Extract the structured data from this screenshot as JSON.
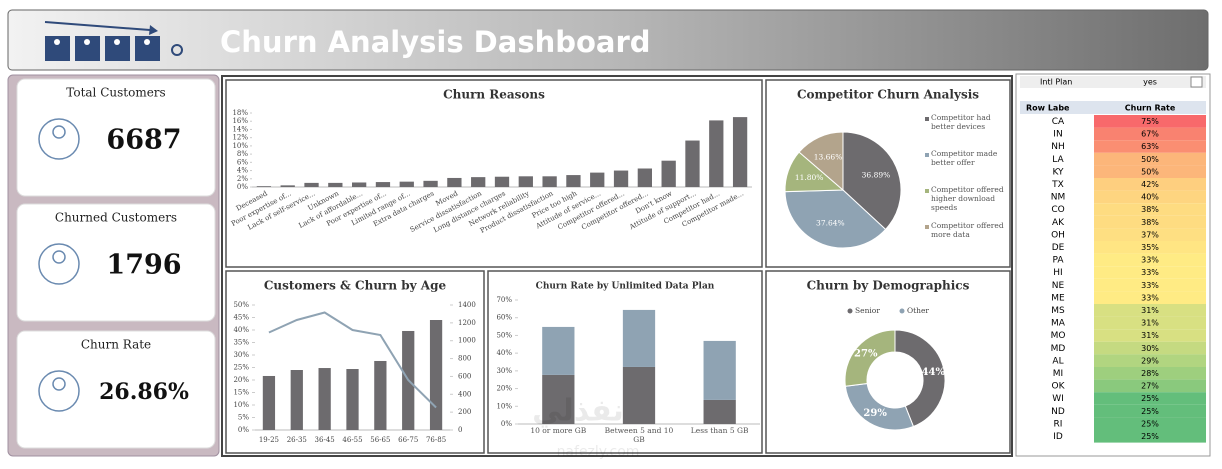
{
  "header": {
    "title": "Churn Analysis Dashboard"
  },
  "kpis": [
    {
      "label": "Total Customers",
      "value": "6687"
    },
    {
      "label": "Churned Customers",
      "value": "1796"
    },
    {
      "label": "Churn Rate",
      "value": "26.86%"
    }
  ],
  "chart_data": [
    {
      "type": "bar",
      "title": "Churn Reasons",
      "color": "#6d6b6e",
      "categories": [
        "Deceased",
        "Poor expertise of...",
        "Lack of self-service...",
        "Unknown",
        "Lack of affordable...",
        "Poor expertise of...",
        "Limited range of...",
        "Extra data charges",
        "Moved",
        "Service dissatisfaction",
        "Long distance charges",
        "Network reliability",
        "Product dissatisfaction",
        "Price too high",
        "Attitude of service...",
        "Competitor offered...",
        "Competitor offered...",
        "Don't know",
        "Attitude of support...",
        "Competitor had...",
        "Competitor made..."
      ],
      "values": [
        0.2,
        0.4,
        1.0,
        1.0,
        1.1,
        1.2,
        1.3,
        1.5,
        2.2,
        2.4,
        2.5,
        2.6,
        2.6,
        2.9,
        3.5,
        4.0,
        4.5,
        6.4,
        11.3,
        16.2,
        17.0
      ],
      "ylim": [
        0,
        18
      ],
      "yticks": [
        {
          "value": 0,
          "label": "0%"
        },
        {
          "value": 2,
          "label": "2%"
        },
        {
          "value": 4,
          "label": "4%"
        },
        {
          "value": 6,
          "label": "6%"
        },
        {
          "value": 8,
          "label": "8%"
        },
        {
          "value": 10,
          "label": "10%"
        },
        {
          "value": 12,
          "label": "12%"
        },
        {
          "value": 14,
          "label": "14%"
        },
        {
          "value": 16,
          "label": "16%"
        },
        {
          "value": 18,
          "label": "18%"
        }
      ]
    },
    {
      "type": "pie",
      "title": "Competitor Churn Analysis",
      "categories": [
        "Competitor had better devices",
        "Competitor made better offer",
        "Competitor offered higher download speeds",
        "Competitor offered more data"
      ],
      "values": [
        36.89,
        37.64,
        11.8,
        13.66
      ],
      "value_labels": [
        "36.89%",
        "37.64%",
        "11.80%",
        "13.66%"
      ],
      "colors": [
        "#6d6b6e",
        "#8fa3b3",
        "#a5b57d",
        "#b3a48c"
      ]
    },
    {
      "type": "combo",
      "title": "Customers & Churn by Age",
      "categories": [
        "19-25",
        "26-35",
        "36-45",
        "46-55",
        "56-65",
        "66-75",
        "76-85"
      ],
      "series": [
        {
          "axis": "y2",
          "kind": "bar",
          "color": "#6d6b6e",
          "values": [
            605,
            672,
            694,
            683,
            773,
            1109,
            1232
          ]
        },
        {
          "kind": "line",
          "color": "#8fa3b3",
          "values": [
            39,
            44,
            47,
            40,
            38,
            20,
            9
          ]
        }
      ],
      "ylim": [
        0,
        50
      ],
      "yticks": [
        {
          "value": 0,
          "label": "0%"
        },
        {
          "value": 5,
          "label": "5%"
        },
        {
          "value": 10,
          "label": "10%"
        },
        {
          "value": 15,
          "label": "15%"
        },
        {
          "value": 20,
          "label": "20%"
        },
        {
          "value": 25,
          "label": "25%"
        },
        {
          "value": 30,
          "label": "30%"
        },
        {
          "value": 35,
          "label": "35%"
        },
        {
          "value": 40,
          "label": "40%"
        },
        {
          "value": 45,
          "label": "45%"
        },
        {
          "value": 50,
          "label": "50%"
        }
      ],
      "y2lim": [
        0,
        1400
      ],
      "y2ticks": [
        0,
        200,
        400,
        600,
        800,
        1000,
        1200,
        1400
      ]
    },
    {
      "type": "stacked_bar",
      "title": "Churn Rate by Unlimited Data Plan",
      "categories": [
        "10 or more GB",
        "Between 5 and 10 GB",
        "Less than 5 GB"
      ],
      "series": [
        {
          "color": "#6d6b6e",
          "values": [
            27.7,
            32.2,
            13.6
          ]
        },
        {
          "color": "#8fa3b3",
          "values": [
            27.1,
            32.2,
            33.3
          ]
        }
      ],
      "ylim": [
        0,
        70
      ],
      "yticks": [
        {
          "value": 0,
          "label": "0%"
        },
        {
          "value": 10,
          "label": "10%"
        },
        {
          "value": 20,
          "label": "20%"
        },
        {
          "value": 30,
          "label": "30%"
        },
        {
          "value": 40,
          "label": "40%"
        },
        {
          "value": 50,
          "label": "50%"
        },
        {
          "value": 60,
          "label": "60%"
        },
        {
          "value": 70,
          "label": "70%"
        }
      ]
    },
    {
      "type": "donut",
      "title": "Churn by Demographics",
      "categories": [
        "Senior",
        "Other",
        null
      ],
      "values": [
        44,
        29,
        27
      ],
      "value_labels": [
        "44%",
        "29%",
        "27%"
      ],
      "colors": [
        "#6d6b6e",
        "#8fa3b3",
        "#a5b57d"
      ]
    }
  ],
  "pivot": {
    "filter": [
      "Intl Plan",
      "yes"
    ],
    "header": [
      "Row Labe",
      "Churn Rate"
    ],
    "rows": [
      [
        "CA",
        "75%"
      ],
      [
        "IN",
        "67%"
      ],
      [
        "NH",
        "63%"
      ],
      [
        "LA",
        "50%"
      ],
      [
        "KY",
        "50%"
      ],
      [
        "TX",
        "42%"
      ],
      [
        "NM",
        "40%"
      ],
      [
        "CO",
        "38%"
      ],
      [
        "AK",
        "38%"
      ],
      [
        "OH",
        "37%"
      ],
      [
        "DE",
        "35%"
      ],
      [
        "PA",
        "33%"
      ],
      [
        "HI",
        "33%"
      ],
      [
        "NE",
        "33%"
      ],
      [
        "ME",
        "33%"
      ],
      [
        "MS",
        "31%"
      ],
      [
        "MA",
        "31%"
      ],
      [
        "MO",
        "31%"
      ],
      [
        "MD",
        "30%"
      ],
      [
        "AL",
        "29%"
      ],
      [
        "MI",
        "28%"
      ],
      [
        "OK",
        "27%"
      ],
      [
        "WI",
        "25%"
      ],
      [
        "ND",
        "25%"
      ],
      [
        "RI",
        "25%"
      ],
      [
        "ID",
        "25%"
      ]
    ]
  },
  "watermark": {
    "text": "نفذلي",
    "url": "nafezly.com"
  }
}
